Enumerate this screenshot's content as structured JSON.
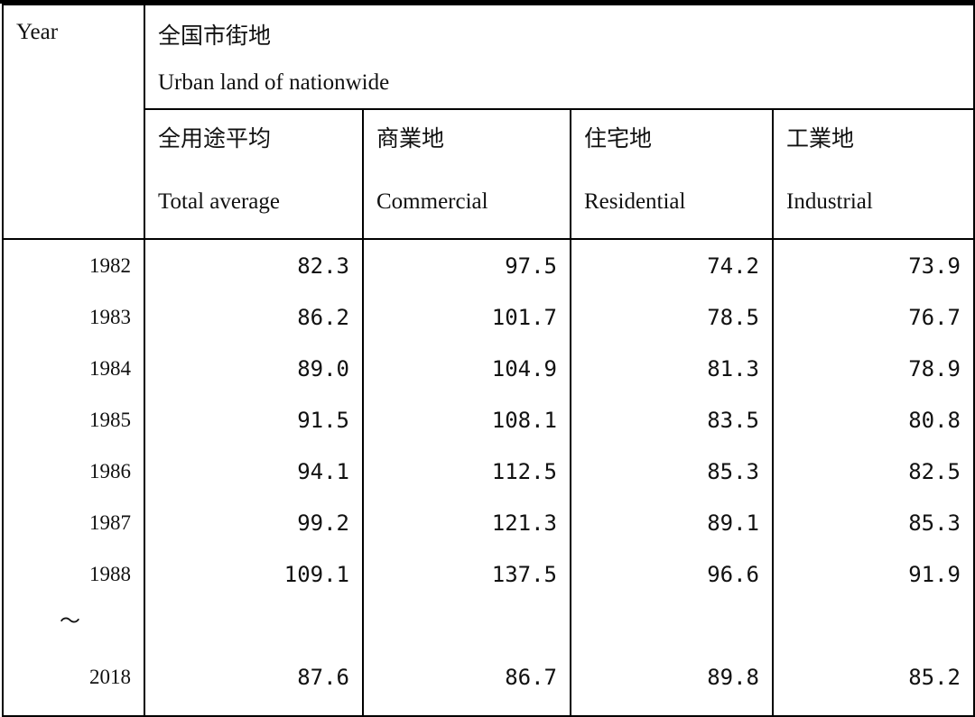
{
  "header": {
    "year_label": "Year",
    "group_title_jp": "全国市街地",
    "group_title_en": "Urban land of nationwide"
  },
  "columns": [
    {
      "jp": "全用途平均",
      "en": "Total average"
    },
    {
      "jp": "商業地",
      "en": "Commercial"
    },
    {
      "jp": "住宅地",
      "en": "Residential"
    },
    {
      "jp": "工業地",
      "en": "Industrial"
    }
  ],
  "rows": [
    {
      "year": "1982",
      "values": [
        "82.3",
        "97.5",
        "74.2",
        "73.9"
      ]
    },
    {
      "year": "1983",
      "values": [
        "86.2",
        "101.7",
        "78.5",
        "76.7"
      ]
    },
    {
      "year": "1984",
      "values": [
        "89.0",
        "104.9",
        "81.3",
        "78.9"
      ]
    },
    {
      "year": "1985",
      "values": [
        "91.5",
        "108.1",
        "83.5",
        "80.8"
      ]
    },
    {
      "year": "1986",
      "values": [
        "94.1",
        "112.5",
        "85.3",
        "82.5"
      ]
    },
    {
      "year": "1987",
      "values": [
        "99.2",
        "121.3",
        "89.1",
        "85.3"
      ]
    },
    {
      "year": "1988",
      "values": [
        "109.1",
        "137.5",
        "96.6",
        "91.9"
      ]
    },
    {
      "year": "～",
      "values": [
        "",
        "",
        "",
        ""
      ]
    },
    {
      "year": "2018",
      "values": [
        "87.6",
        "86.7",
        "89.8",
        "85.2"
      ]
    }
  ]
}
